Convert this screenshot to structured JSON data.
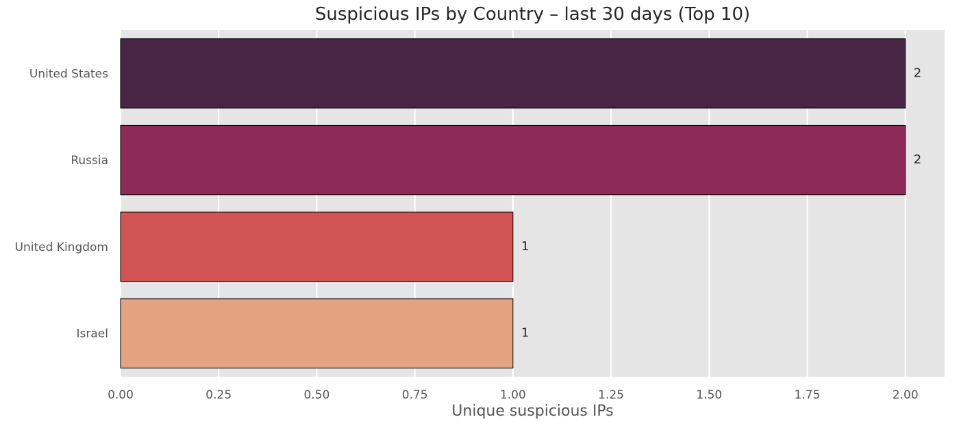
{
  "chart_data": {
    "type": "bar",
    "orientation": "horizontal",
    "title": "Suspicious IPs by Country – last 30 days (Top 10)",
    "xlabel": "Unique suspicious IPs",
    "ylabel": "",
    "categories": [
      "United States",
      "Russia",
      "United Kingdom",
      "Israel"
    ],
    "values": [
      2,
      2,
      1,
      1
    ],
    "data_labels": [
      "2",
      "2",
      "1",
      "1"
    ],
    "bar_colors": [
      "#482445",
      "#8e2a58",
      "#d15555",
      "#e3a383"
    ],
    "xlim": [
      0,
      2.1
    ],
    "xticks": [
      0,
      0.25,
      0.5,
      0.75,
      1.0,
      1.25,
      1.5,
      1.75,
      2.0
    ],
    "xtick_labels": [
      "0.00",
      "0.25",
      "0.50",
      "0.75",
      "1.00",
      "1.25",
      "1.50",
      "1.75",
      "2.00"
    ],
    "grid": true,
    "plot_background": "#e5e5e5"
  }
}
